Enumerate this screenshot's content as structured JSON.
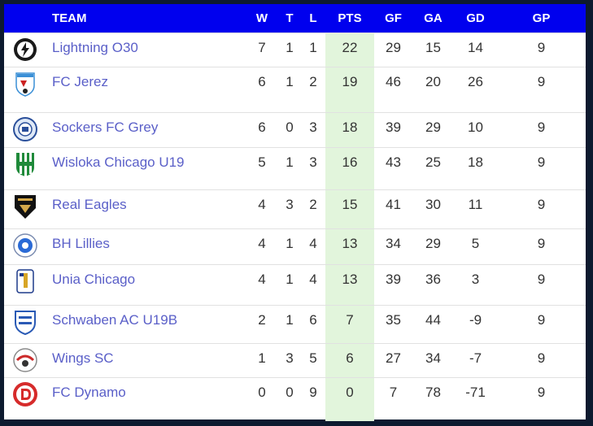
{
  "headers": {
    "logo": "",
    "team": "TEAM",
    "w": "W",
    "t": "T",
    "l": "L",
    "pts": "PTS",
    "gf": "GF",
    "ga": "GA",
    "gd": "GD",
    "gp": "GP"
  },
  "rows": [
    {
      "team": "Lightning O30",
      "logo_icon": "lightning-badge-icon",
      "w": "7",
      "t": "1",
      "l": "1",
      "pts": "22",
      "gf": "29",
      "ga": "15",
      "gd": "14",
      "gp": "9"
    },
    {
      "team": "FC Jerez",
      "logo_icon": "fc-jerez-badge-icon",
      "w": "6",
      "t": "1",
      "l": "2",
      "pts": "19",
      "gf": "46",
      "ga": "20",
      "gd": "26",
      "gp": "9"
    },
    {
      "team": "Sockers FC Grey",
      "logo_icon": "sockers-badge-icon",
      "w": "6",
      "t": "0",
      "l": "3",
      "pts": "18",
      "gf": "39",
      "ga": "29",
      "gd": "10",
      "gp": "9"
    },
    {
      "team": "Wisloka Chicago U19",
      "logo_icon": "wisloka-badge-icon",
      "w": "5",
      "t": "1",
      "l": "3",
      "pts": "16",
      "gf": "43",
      "ga": "25",
      "gd": "18",
      "gp": "9"
    },
    {
      "team": "Real Eagles",
      "logo_icon": "real-eagles-badge-icon",
      "w": "4",
      "t": "3",
      "l": "2",
      "pts": "15",
      "gf": "41",
      "ga": "30",
      "gd": "11",
      "gp": "9"
    },
    {
      "team": "BH Lillies",
      "logo_icon": "bh-lillies-badge-icon",
      "w": "4",
      "t": "1",
      "l": "4",
      "pts": "13",
      "gf": "34",
      "ga": "29",
      "gd": "5",
      "gp": "9"
    },
    {
      "team": "Unia Chicago",
      "logo_icon": "unia-chicago-badge-icon",
      "w": "4",
      "t": "1",
      "l": "4",
      "pts": "13",
      "gf": "39",
      "ga": "36",
      "gd": "3",
      "gp": "9"
    },
    {
      "team": "Schwaben AC U19B",
      "logo_icon": "schwaben-badge-icon",
      "w": "2",
      "t": "1",
      "l": "6",
      "pts": "7",
      "gf": "35",
      "ga": "44",
      "gd": "-9",
      "gp": "9"
    },
    {
      "team": "Wings SC",
      "logo_icon": "wings-sc-badge-icon",
      "w": "1",
      "t": "3",
      "l": "5",
      "pts": "6",
      "gf": "27",
      "ga": "34",
      "gd": "-7",
      "gp": "9"
    },
    {
      "team": "FC Dynamo",
      "logo_icon": "fc-dynamo-badge-icon",
      "w": "0",
      "t": "0",
      "l": "9",
      "pts": "0",
      "gf": "7",
      "ga": "78",
      "gd": "-71",
      "gp": "9"
    }
  ],
  "colors": {
    "header_bg": "#0000ee",
    "team_link": "#5a5fc8",
    "pts_highlight": "#e2f5dc"
  }
}
